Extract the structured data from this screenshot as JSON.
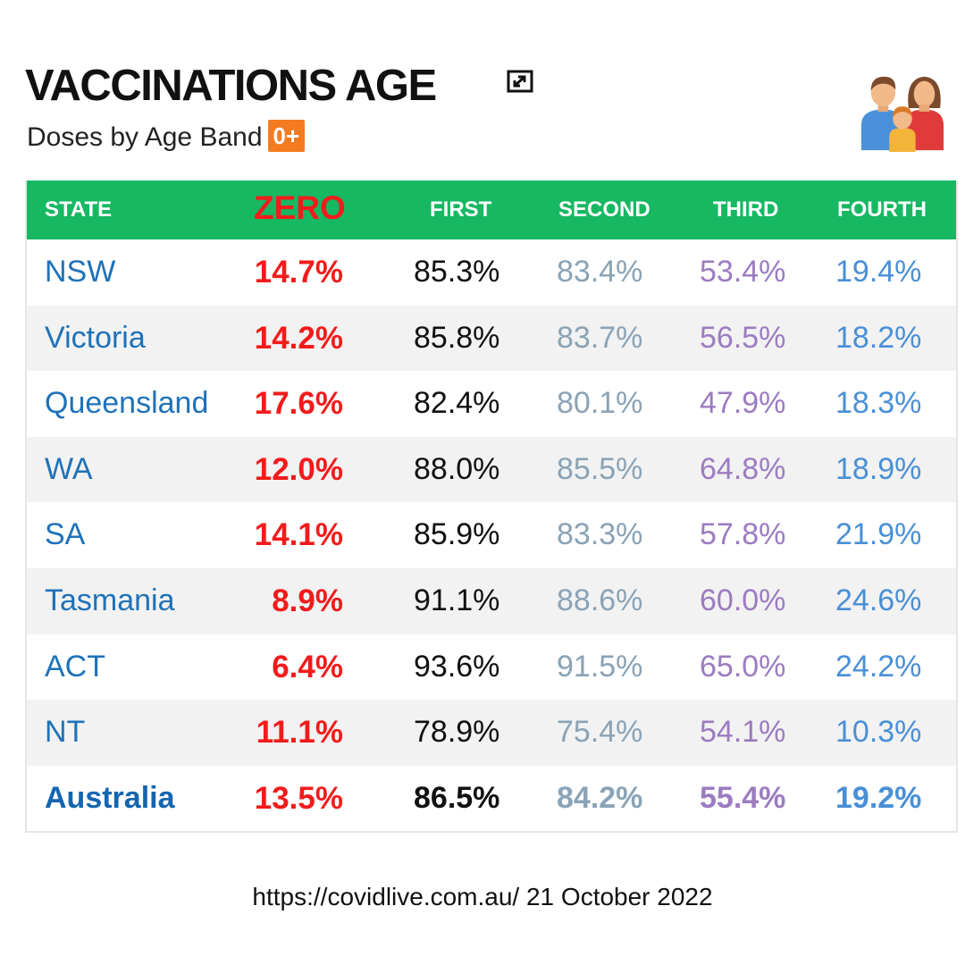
{
  "header": {
    "title": "VACCINATIONS AGE",
    "subtitle": "Doses by Age Band",
    "badge": "0+",
    "expand_icon": "expand-icon",
    "family_icon": "family-icon"
  },
  "table": {
    "columns": [
      "STATE",
      "ZERO",
      "FIRST",
      "SECOND",
      "THIRD",
      "FOURTH"
    ],
    "rows": [
      {
        "state": "NSW",
        "zero": "14.7%",
        "first": "85.3%",
        "second": "83.4%",
        "third": "53.4%",
        "fourth": "19.4%"
      },
      {
        "state": "Victoria",
        "zero": "14.2%",
        "first": "85.8%",
        "second": "83.7%",
        "third": "56.5%",
        "fourth": "18.2%"
      },
      {
        "state": "Queensland",
        "zero": "17.6%",
        "first": "82.4%",
        "second": "80.1%",
        "third": "47.9%",
        "fourth": "18.3%"
      },
      {
        "state": "WA",
        "zero": "12.0%",
        "first": "88.0%",
        "second": "85.5%",
        "third": "64.8%",
        "fourth": "18.9%"
      },
      {
        "state": "SA",
        "zero": "14.1%",
        "first": "85.9%",
        "second": "83.3%",
        "third": "57.8%",
        "fourth": "21.9%"
      },
      {
        "state": "Tasmania",
        "zero": "8.9%",
        "first": "91.1%",
        "second": "88.6%",
        "third": "60.0%",
        "fourth": "24.6%"
      },
      {
        "state": "ACT",
        "zero": "6.4%",
        "first": "93.6%",
        "second": "91.5%",
        "third": "65.0%",
        "fourth": "24.2%"
      },
      {
        "state": "NT",
        "zero": "11.1%",
        "first": "78.9%",
        "second": "75.4%",
        "third": "54.1%",
        "fourth": "10.3%"
      },
      {
        "state": "Australia",
        "zero": "13.5%",
        "first": "86.5%",
        "second": "84.2%",
        "third": "55.4%",
        "fourth": "19.2%"
      }
    ]
  },
  "colors": {
    "header_green": "#16b862",
    "badge_orange": "#f47b20",
    "state_blue": "#1f72b8",
    "zero_red": "#f21b1b",
    "first_black": "#111111",
    "second_grey_blue": "#8aa3b6",
    "third_purple": "#9c7cc0",
    "fourth_blue": "#4a8fd6"
  },
  "footer": {
    "source": "https://covidlive.com.au/ 21 October 2022"
  }
}
